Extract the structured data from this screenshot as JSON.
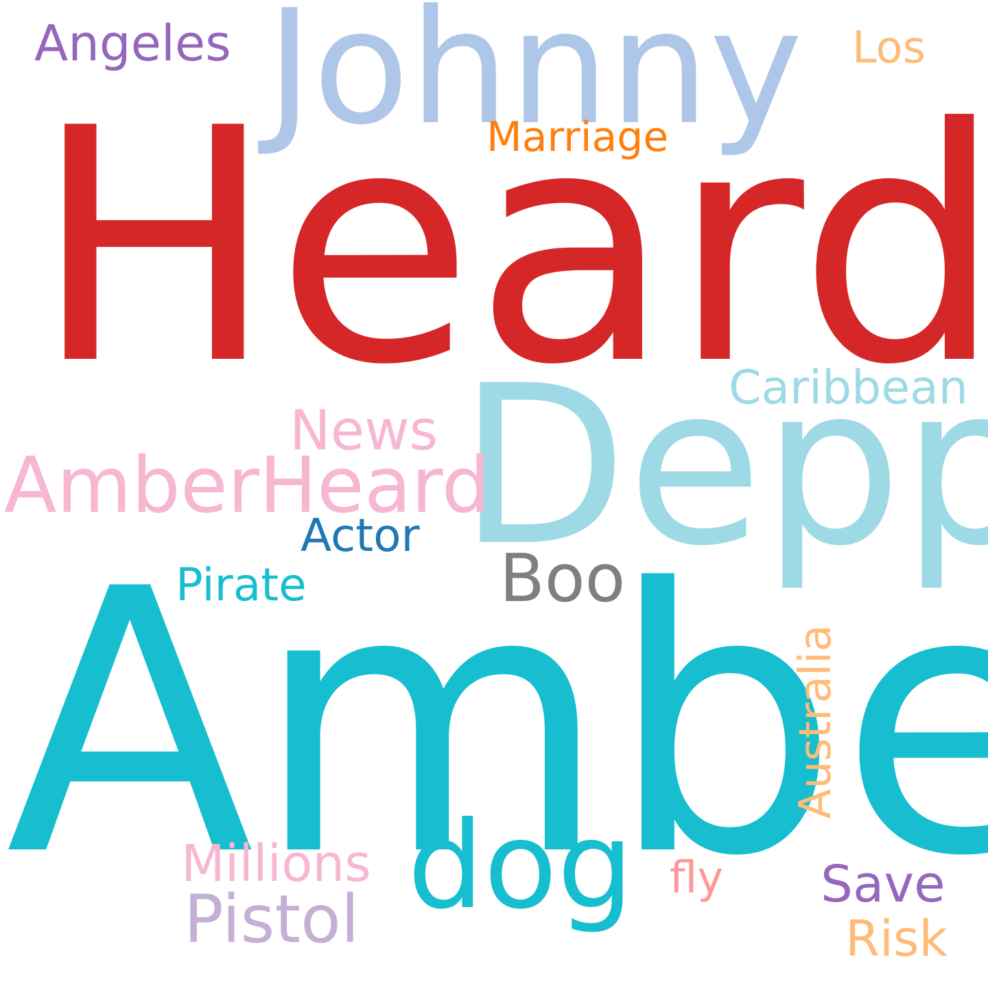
{
  "words": {
    "heard": {
      "text": "Heard",
      "color": "#d62728"
    },
    "amber": {
      "text": "Amber",
      "color": "#17becf"
    },
    "johnny": {
      "text": "Johnny",
      "color": "#aec7e8"
    },
    "depp": {
      "text": "Depp",
      "color": "#9edae5"
    },
    "amberheard": {
      "text": "AmberHeard",
      "color": "#f7b6d2"
    },
    "dog": {
      "text": "dog",
      "color": "#17becf"
    },
    "australia": {
      "text": "Australia",
      "color": "#ffbb78"
    },
    "pistol": {
      "text": "Pistol",
      "color": "#c5b0d5"
    },
    "boo": {
      "text": "Boo",
      "color": "#7f7f7f"
    },
    "caribbean": {
      "text": "Caribbean",
      "color": "#9edae5"
    },
    "angeles": {
      "text": "Angeles",
      "color": "#9467bd"
    },
    "marriage": {
      "text": "Marriage",
      "color": "#ff7f0e"
    },
    "los": {
      "text": "Los",
      "color": "#ffbb78"
    },
    "news": {
      "text": "News",
      "color": "#f7b6d2"
    },
    "actor": {
      "text": "Actor",
      "color": "#1f77b4"
    },
    "pirate": {
      "text": "Pirate",
      "color": "#17becf"
    },
    "millions": {
      "text": "Millions",
      "color": "#f7b6d2"
    },
    "save": {
      "text": "Save",
      "color": "#9467bd"
    },
    "fly": {
      "text": "fly",
      "color": "#ff9896"
    },
    "risk": {
      "text": "Risk",
      "color": "#ffbb78"
    }
  }
}
